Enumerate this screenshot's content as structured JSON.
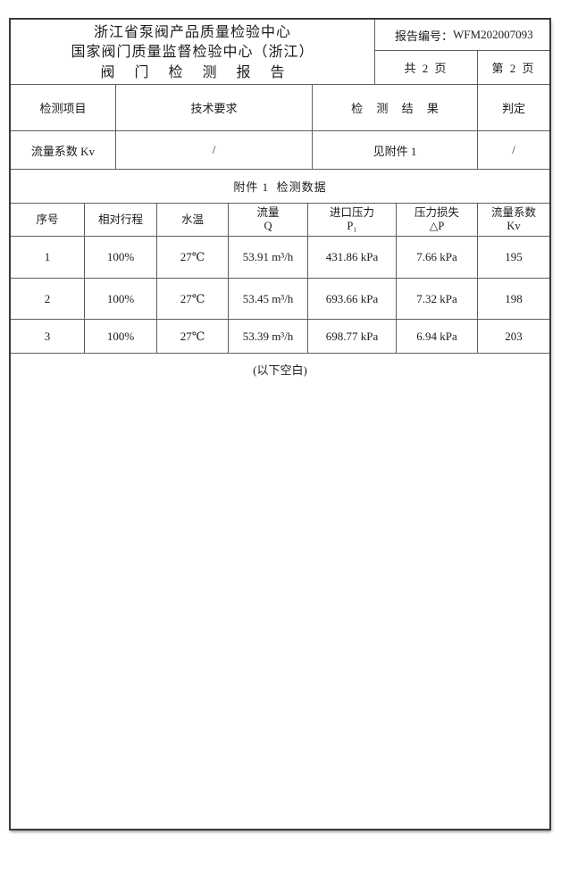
{
  "header": {
    "org_line1": "浙江省泵阀产品质量检验中心",
    "org_line2": "国家阀门质量监督检验中心（浙江）",
    "title": "阀 门 检 测 报 告",
    "report_no_label": "报告编号：",
    "report_no": "WFM202007093",
    "total_pages": "共 2 页",
    "page_no": "第 2 页"
  },
  "summary_table": {
    "headers": [
      "检测项目",
      "技术要求",
      "检 测 结 果",
      "判定"
    ],
    "row": [
      "流量系数 Kv",
      "/",
      "见附件 1",
      "/"
    ]
  },
  "attachment": {
    "title": "附件 1  检测数据"
  },
  "data_table": {
    "headers": [
      {
        "line1": "序号",
        "line2": ""
      },
      {
        "line1": "相对行程",
        "line2": ""
      },
      {
        "line1": "水温",
        "line2": ""
      },
      {
        "line1": "流量",
        "line2": "Q"
      },
      {
        "line1": "进口压力",
        "line2": "P₁"
      },
      {
        "line1": "压力损失",
        "line2": "△P"
      },
      {
        "line1": "流量系数",
        "line2": "Kv"
      }
    ],
    "rows": [
      [
        "1",
        "100%",
        "27℃",
        "53.91 m³/h",
        "431.86 kPa",
        "7.66 kPa",
        "195"
      ],
      [
        "2",
        "100%",
        "27℃",
        "53.45 m³/h",
        "693.66 kPa",
        "7.32 kPa",
        "198"
      ],
      [
        "3",
        "100%",
        "27℃",
        "53.39 m³/h",
        "698.77 kPa",
        "6.94 kPa",
        "203"
      ]
    ]
  },
  "footer_note": "(以下空白)",
  "colors": {
    "page_bg": "#ffffff",
    "border_outer": "#3a3a3a",
    "border_inner": "#5e5e5e",
    "text": "#1b1b1b"
  }
}
